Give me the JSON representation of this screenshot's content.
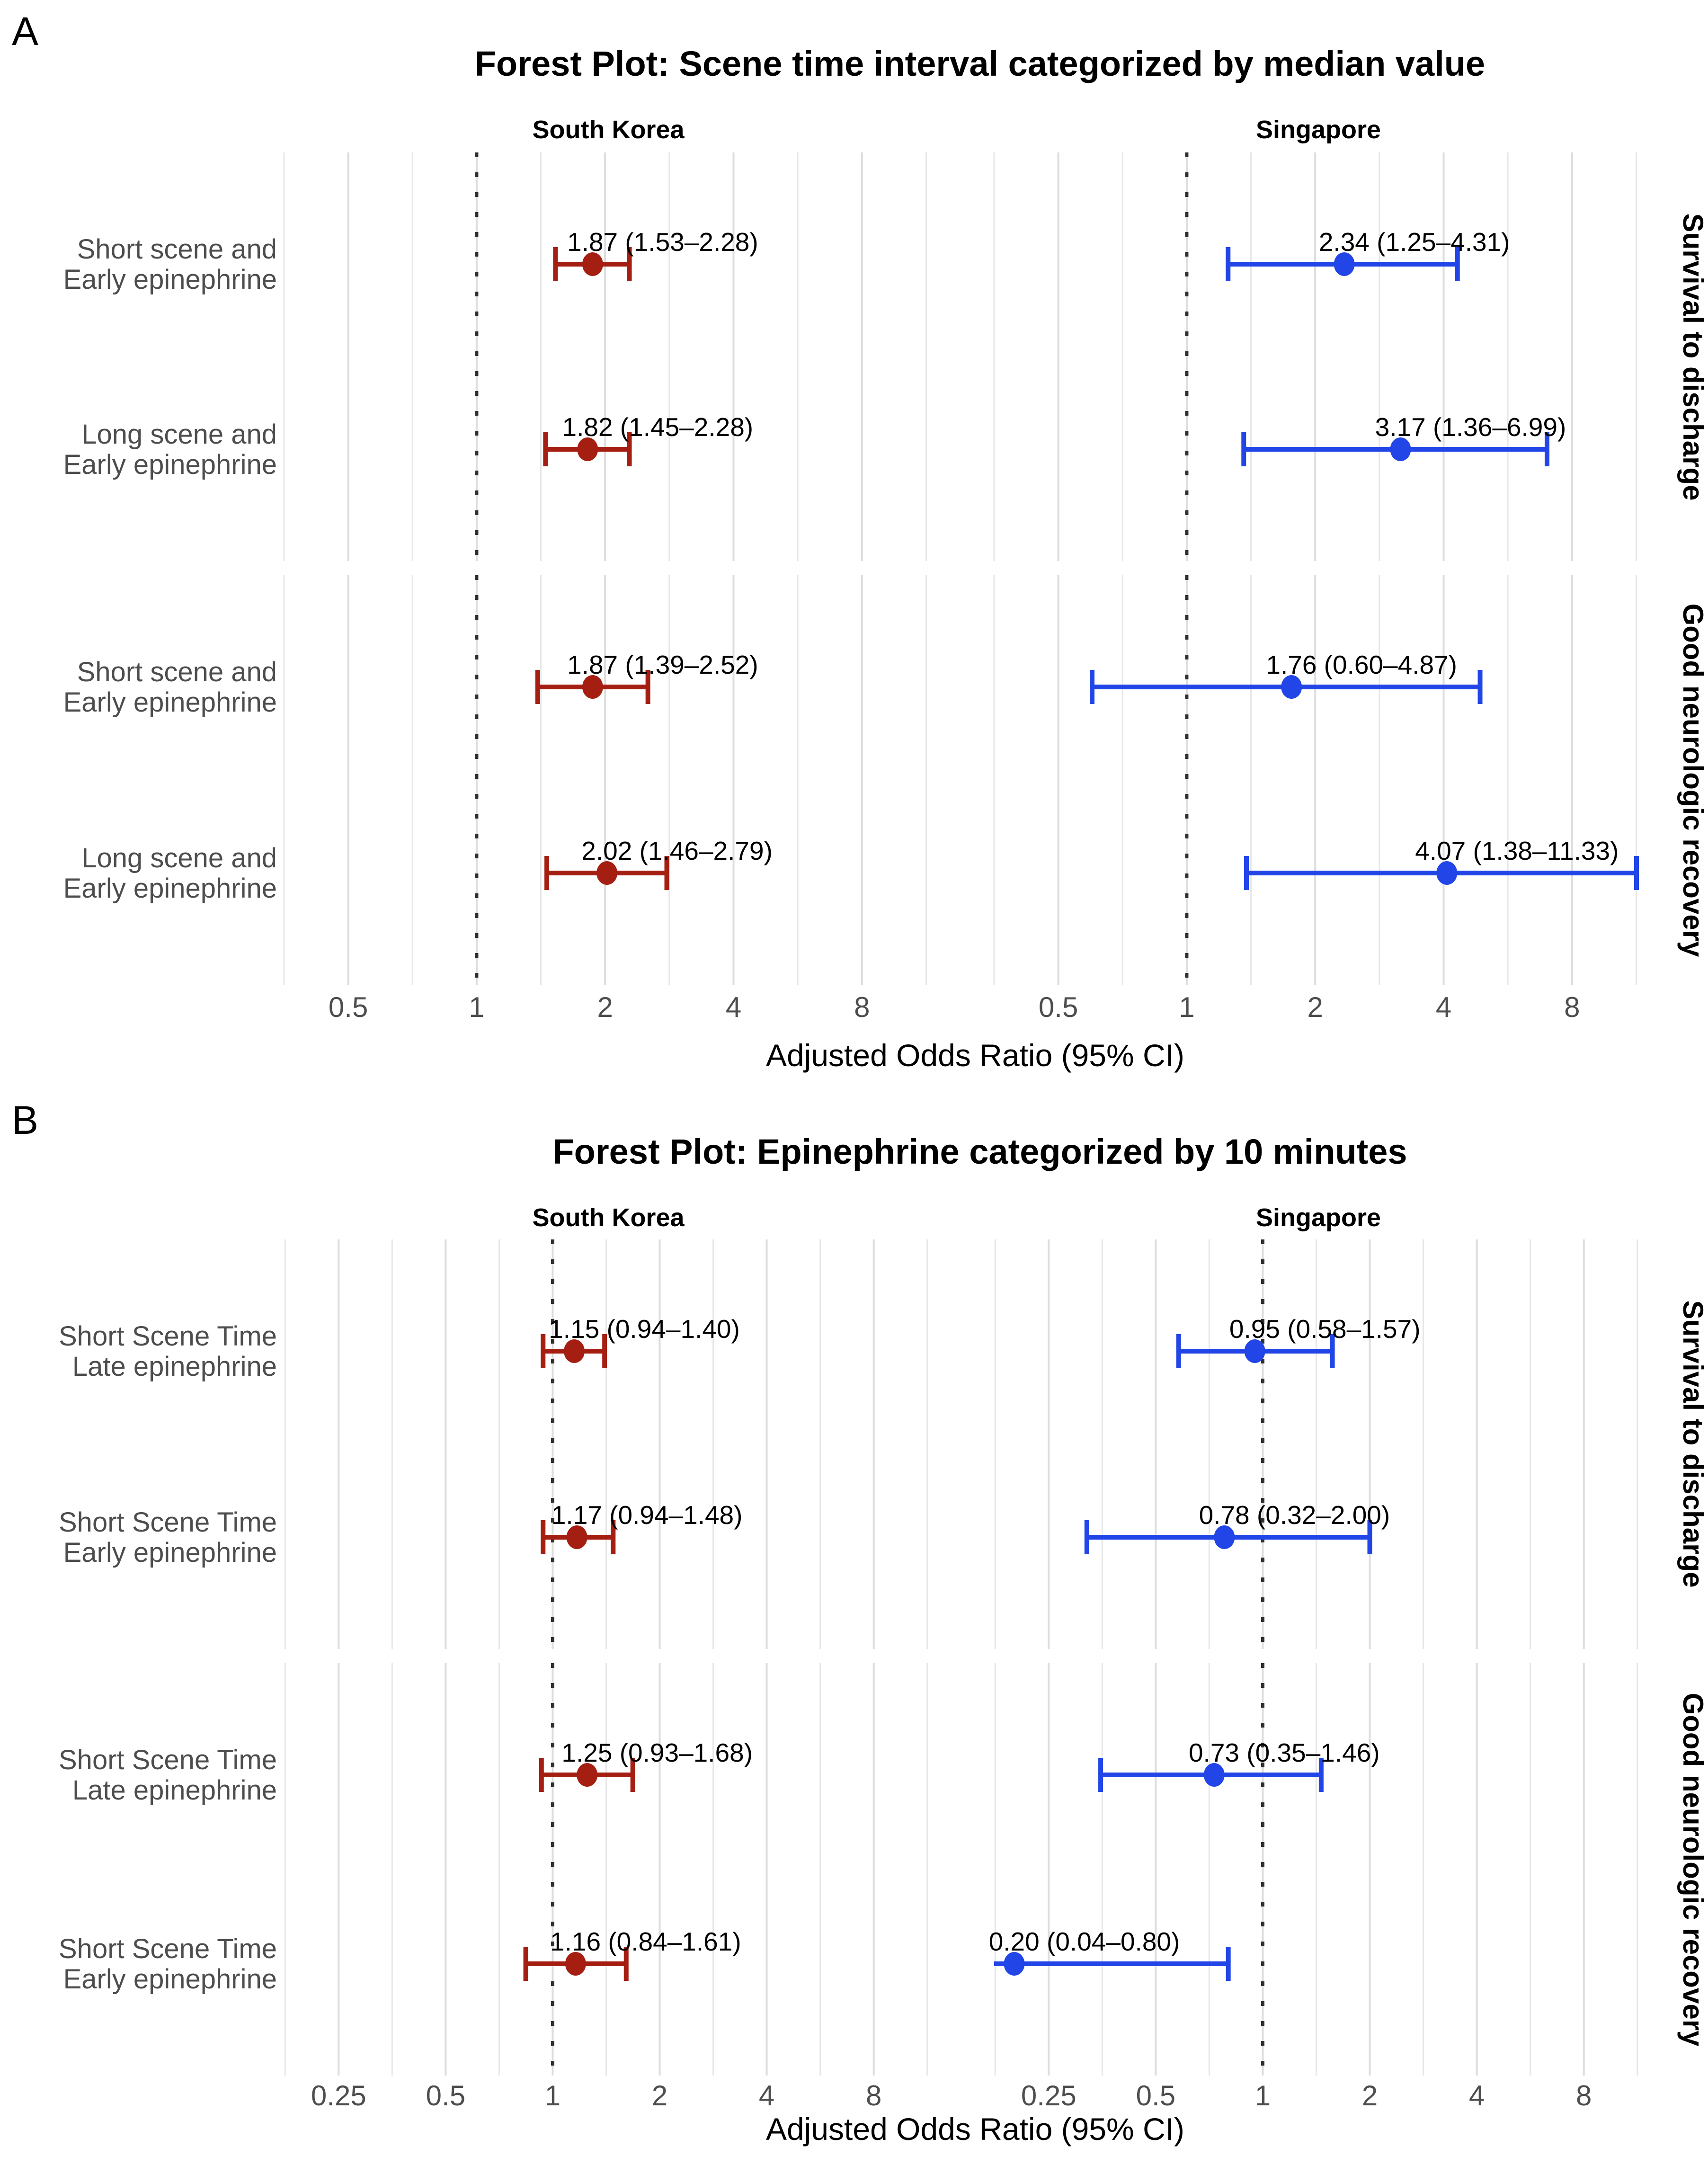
{
  "figure": {
    "colors": {
      "south_korea": "#A51E12",
      "singapore": "#2145E6",
      "grid_minor": "#E7E7E7",
      "grid_major": "#DDDDDD",
      "reference_line": "#2F2F2F",
      "muted_text": "#4D4D4D"
    }
  },
  "chart_data": [
    {
      "type": "forest",
      "panel_letter": "A",
      "title": "Forest Plot: Scene time interval categorized by median value",
      "xlabel": "Adjusted Odds Ratio (95% CI)",
      "x_scale": "log2",
      "x_ticks": [
        "0.5",
        "1",
        "2",
        "4",
        "8"
      ],
      "x_range": [
        0.35,
        11.7
      ],
      "reference_value": 1,
      "legend_position": "none",
      "grid": "on",
      "columns": [
        "South Korea",
        "Singapore"
      ],
      "rows": [
        "Survival to discharge",
        "Good neurologic recovery"
      ],
      "groups": [
        {
          "outcome": "Survival to discharge",
          "items": [
            {
              "label_lines": [
                "Short scene and",
                "Early epinephrine"
              ],
              "estimates": [
                {
                  "or": 1.87,
                  "lo": 1.53,
                  "hi": 2.28,
                  "text": "1.87 (1.53–2.28)"
                },
                {
                  "or": 2.34,
                  "lo": 1.25,
                  "hi": 4.31,
                  "text": "2.34 (1.25–4.31)"
                }
              ]
            },
            {
              "label_lines": [
                "Long scene and",
                "Early epinephrine"
              ],
              "estimates": [
                {
                  "or": 1.82,
                  "lo": 1.45,
                  "hi": 2.28,
                  "text": "1.82 (1.45–2.28)"
                },
                {
                  "or": 3.17,
                  "lo": 1.36,
                  "hi": 6.99,
                  "text": "3.17 (1.36–6.99)"
                }
              ]
            }
          ]
        },
        {
          "outcome": "Good neurologic recovery",
          "items": [
            {
              "label_lines": [
                "Short scene and",
                "Early epinephrine"
              ],
              "estimates": [
                {
                  "or": 1.87,
                  "lo": 1.39,
                  "hi": 2.52,
                  "text": "1.87 (1.39–2.52)"
                },
                {
                  "or": 1.76,
                  "lo": 0.6,
                  "hi": 4.87,
                  "text": "1.76 (0.60–4.87)"
                }
              ]
            },
            {
              "label_lines": [
                "Long scene and",
                "Early epinephrine"
              ],
              "estimates": [
                {
                  "or": 2.02,
                  "lo": 1.46,
                  "hi": 2.79,
                  "text": "2.02 (1.46–2.79)"
                },
                {
                  "or": 4.07,
                  "lo": 1.38,
                  "hi": 11.33,
                  "text": "4.07 (1.38–11.33)"
                }
              ]
            }
          ]
        }
      ]
    },
    {
      "type": "forest",
      "panel_letter": "B",
      "title": "Forest Plot: Epinephrine categorized by 10 minutes",
      "xlabel": "Adjusted Odds Ratio (95% CI)",
      "x_scale": "log2",
      "x_ticks": [
        "0.25",
        "0.5",
        "1",
        "2",
        "4",
        "8"
      ],
      "x_range": [
        0.175,
        11.7
      ],
      "reference_value": 1,
      "legend_position": "none",
      "grid": "on",
      "columns": [
        "South Korea",
        "Singapore"
      ],
      "rows": [
        "Survival to discharge",
        "Good neurologic recovery"
      ],
      "groups": [
        {
          "outcome": "Survival to discharge",
          "items": [
            {
              "label_lines": [
                "Short Scene Time",
                "Late epinephrine"
              ],
              "estimates": [
                {
                  "or": 1.15,
                  "lo": 0.94,
                  "hi": 1.4,
                  "text": "1.15 (0.94–1.40)"
                },
                {
                  "or": 0.95,
                  "lo": 0.58,
                  "hi": 1.57,
                  "text": "0.95 (0.58–1.57)"
                }
              ]
            },
            {
              "label_lines": [
                "Short Scene Time",
                "Early epinephrine"
              ],
              "estimates": [
                {
                  "or": 1.17,
                  "lo": 0.94,
                  "hi": 1.48,
                  "text": "1.17 (0.94–1.48)"
                },
                {
                  "or": 0.78,
                  "lo": 0.32,
                  "hi": 2.0,
                  "text": "0.78 (0.32–2.00)"
                }
              ]
            }
          ]
        },
        {
          "outcome": "Good neurologic recovery",
          "items": [
            {
              "label_lines": [
                "Short Scene Time",
                "Late epinephrine"
              ],
              "estimates": [
                {
                  "or": 1.25,
                  "lo": 0.93,
                  "hi": 1.68,
                  "text": "1.25 (0.93–1.68)"
                },
                {
                  "or": 0.73,
                  "lo": 0.35,
                  "hi": 1.46,
                  "text": "0.73 (0.35–1.46)"
                }
              ]
            },
            {
              "label_lines": [
                "Short Scene Time",
                "Early epinephrine"
              ],
              "estimates": [
                {
                  "or": 1.16,
                  "lo": 0.84,
                  "hi": 1.61,
                  "text": "1.16 (0.84–1.61)"
                },
                {
                  "or": 0.2,
                  "lo": 0.04,
                  "hi": 0.8,
                  "text": "0.20 (0.04–0.80)"
                }
              ]
            }
          ]
        }
      ]
    }
  ]
}
